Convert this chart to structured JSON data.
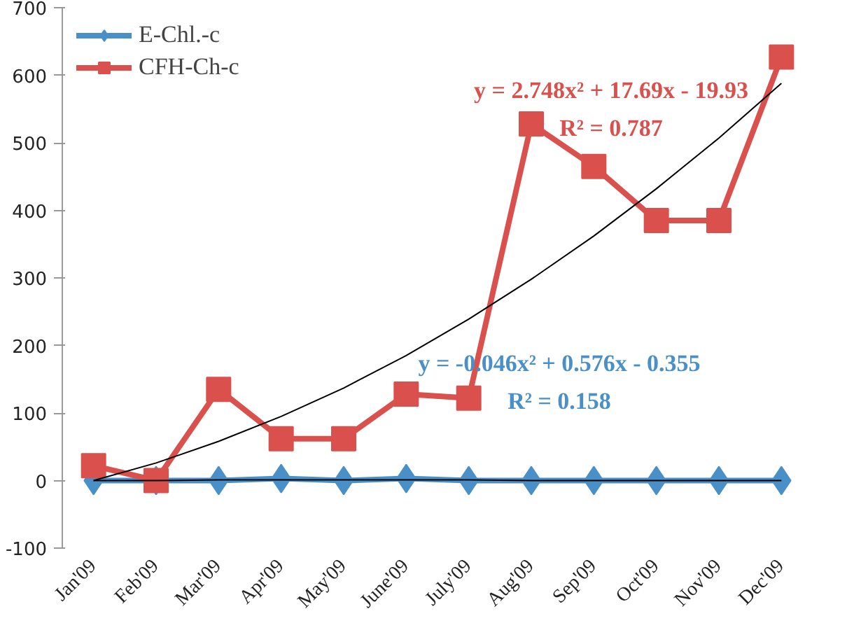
{
  "chart_data": {
    "type": "line",
    "categories": [
      "Jan'09",
      "Feb'09",
      "Mar'09",
      "Apr'09",
      "May'09",
      "June'09",
      "July'09",
      "Aug'09",
      "Sep'09",
      "Oct'09",
      "Nov'09",
      "Dec'09"
    ],
    "series": [
      {
        "name": "E-Chl.-c",
        "color": "#4a90c8",
        "marker": "diamond",
        "values": [
          0,
          0,
          0,
          3,
          0,
          3,
          0,
          0,
          0,
          0,
          0,
          0
        ]
      },
      {
        "name": "CFH-Ch-c",
        "color": "#d9504c",
        "marker": "square",
        "values": [
          22,
          0,
          135,
          62,
          62,
          128,
          122,
          528,
          465,
          385,
          385,
          627
        ]
      },
      {
        "type": "line",
        "color": "#000000",
        "marker": "none",
        "values": [
          0,
          0,
          1,
          1,
          1,
          1,
          1,
          0,
          0,
          0,
          0,
          0
        ]
      },
      {
        "type": "line",
        "color": "#000000",
        "marker": "none",
        "values": [
          0,
          26,
          58,
          95,
          137,
          185,
          239,
          298,
          362,
          432,
          507,
          588
        ]
      }
    ],
    "annotations": [
      "y = -0.046x² + 0.576x - 0.355",
      "R² = 0.158",
      "y = 2.748x² + 17.69x - 19.93",
      "R² = 0.787"
    ],
    "ylim": [
      -100,
      700
    ],
    "yticks": [
      -100,
      0,
      100,
      200,
      300,
      400,
      500,
      600,
      700
    ],
    "grid": false,
    "legend": "top left"
  }
}
